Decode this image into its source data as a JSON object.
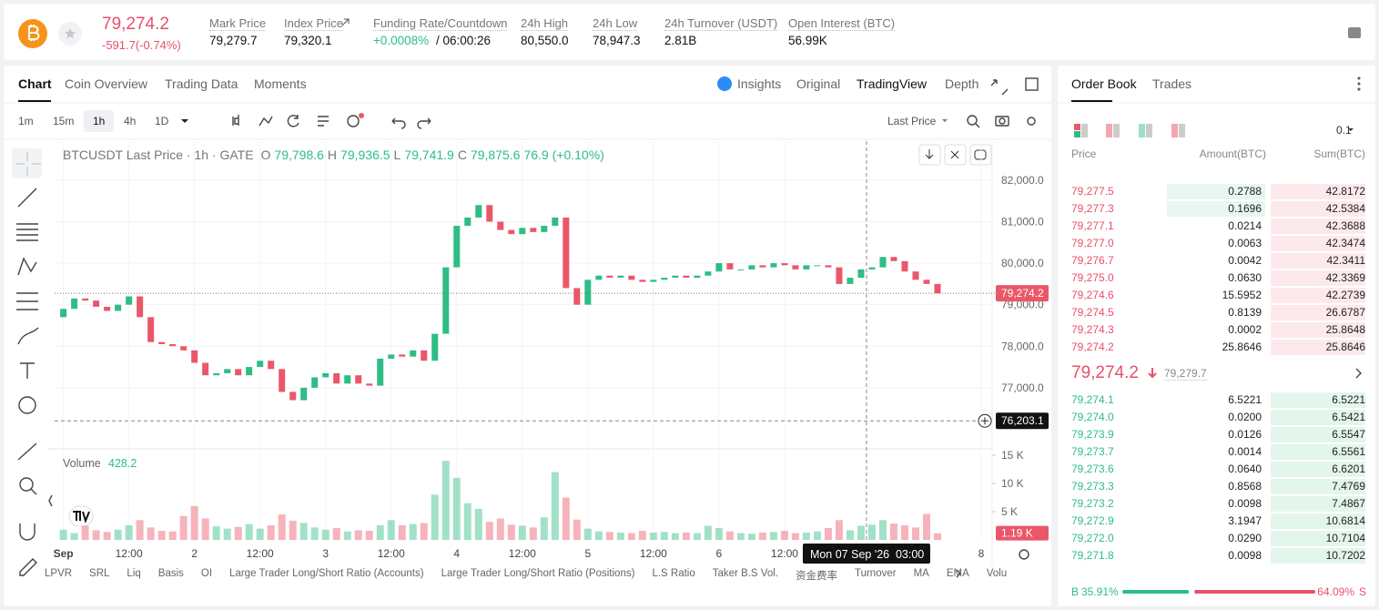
{
  "header": {
    "price": "79,274.2",
    "change": "-591.7(-0.74%)",
    "stats": [
      {
        "label": "Mark Price",
        "value": "79,279.7"
      },
      {
        "label": "Index Price",
        "value": "79,320.1"
      },
      {
        "label": "Funding Rate/Countdown",
        "value": "+0.0008%",
        "countdown": "/ 06:00:26"
      },
      {
        "label": "24h High",
        "value": "80,550.0"
      },
      {
        "label": "24h Low",
        "value": "78,947.3"
      },
      {
        "label": "24h Turnover (USDT)",
        "value": "2.81B"
      },
      {
        "label": "Open Interest (BTC)",
        "value": "56.99K"
      }
    ]
  },
  "tabs": [
    "Chart",
    "Coin Overview",
    "Trading Data",
    "Moments"
  ],
  "views": [
    "Insights",
    "Original",
    "TradingView",
    "Depth"
  ],
  "intervals": [
    "1m",
    "15m",
    "1h",
    "4h",
    "1D"
  ],
  "price_source": "Last Price",
  "legend": {
    "title": "BTCUSDT Last Price · 1h · GATE",
    "ohlc": [
      {
        "key": "O",
        "value": "79,798.6"
      },
      {
        "key": "H",
        "value": "79,936.5"
      },
      {
        "key": "L",
        "value": "79,741.9"
      },
      {
        "key": "C",
        "value": "79,875.6"
      }
    ],
    "change": "76.9 (+0.10%)"
  },
  "volume_legend": {
    "title": "Volume",
    "value": "428.2"
  },
  "chart_data": {
    "type": "candlestick",
    "up_color": "#2ebd85",
    "down_color": "#ea5769",
    "grid": true,
    "open": [
      78700,
      78900,
      79150,
      79100,
      78950,
      78850,
      79000,
      79200,
      78700,
      78100,
      78050,
      78000,
      77900,
      77600,
      77300,
      77350,
      77450,
      77300,
      77500,
      77650,
      77450,
      76900,
      76700,
      77000,
      77250,
      77350,
      77100,
      77300,
      77100,
      77050,
      77700,
      77800,
      77750,
      77900,
      77650,
      78300,
      79900,
      80900,
      81100,
      81400,
      81000,
      80800,
      80700,
      80850,
      80750,
      80900,
      81100,
      79400,
      79000,
      79600,
      79700,
      79650,
      79700,
      79600,
      79550,
      79600,
      79650,
      79700,
      79650,
      79700,
      79800,
      80000,
      79850,
      79850,
      79950,
      79900,
      80000,
      79950,
      79850,
      79950,
      79950,
      79900,
      79500,
      79650,
      79850,
      79900,
      80150,
      80050,
      79800,
      79600,
      79500
    ],
    "close": [
      78900,
      79150,
      79100,
      78950,
      78850,
      79000,
      79200,
      78700,
      78100,
      78050,
      78000,
      77900,
      77600,
      77300,
      77350,
      77450,
      77300,
      77500,
      77650,
      77450,
      76900,
      76700,
      77000,
      77250,
      77350,
      77100,
      77300,
      77100,
      77050,
      77700,
      77800,
      77750,
      77900,
      77650,
      78300,
      79900,
      80900,
      81100,
      81400,
      81000,
      80800,
      80700,
      80850,
      80750,
      80900,
      81100,
      79400,
      79000,
      79600,
      79700,
      79650,
      79700,
      79600,
      79550,
      79600,
      79650,
      79700,
      79650,
      79700,
      79800,
      80000,
      79850,
      79850,
      79950,
      79900,
      80000,
      79950,
      79850,
      79950,
      79950,
      79900,
      79500,
      79650,
      79850,
      79900,
      80150,
      80050,
      79800,
      79600,
      79500,
      79274.2
    ],
    "xlim": [
      -0.8,
      85
    ],
    "xticks": [
      {
        "value": 0,
        "label": "Sep"
      },
      {
        "value": 6,
        "label": "12:00"
      },
      {
        "value": 12,
        "label": "2"
      },
      {
        "value": 18,
        "label": "12:00"
      },
      {
        "value": 24,
        "label": "3"
      },
      {
        "value": 30,
        "label": "12:00"
      },
      {
        "value": 36,
        "label": "4"
      },
      {
        "value": 42,
        "label": "12:00"
      },
      {
        "value": 48,
        "label": "5"
      },
      {
        "value": 54,
        "label": "12:00"
      },
      {
        "value": 60,
        "label": "6"
      },
      {
        "value": 66,
        "label": "12:00"
      },
      {
        "value": 84,
        "label": "8"
      }
    ],
    "ylim": [
      75550,
      82940
    ],
    "yticks": [
      {
        "value": 77000,
        "label": "77,000.0"
      },
      {
        "value": 78000,
        "label": "78,000.0"
      },
      {
        "value": 79000,
        "label": "79,000.0"
      },
      {
        "value": 80000,
        "label": "80,000.0"
      },
      {
        "value": 81000,
        "label": "81,000.0"
      },
      {
        "value": 82000,
        "label": "82,000.0"
      }
    ],
    "last_price": {
      "value": 79274.2,
      "label": "79,274.2"
    },
    "crosshair": {
      "x": 73.5,
      "date": "Mon 07 Sep '26",
      "time": "03:00",
      "price": {
        "value": 76203.1,
        "label": "76,203.1"
      }
    },
    "volume": {
      "values": [
        1800,
        1200,
        2500,
        1700,
        1400,
        1800,
        2600,
        3500,
        2200,
        1600,
        1500,
        4200,
        6000,
        3800,
        2400,
        2000,
        2300,
        2800,
        2000,
        2600,
        4500,
        3400,
        3000,
        2200,
        1800,
        2100,
        1500,
        1700,
        1600,
        2600,
        3500,
        2600,
        2800,
        3000,
        8000,
        14000,
        11000,
        6500,
        5500,
        3200,
        3800,
        2700,
        2500,
        2200,
        4000,
        12000,
        7500,
        3600,
        2000,
        1500,
        1400,
        1300,
        1200,
        1600,
        1300,
        1400,
        1200,
        1300,
        1200,
        2500,
        2100,
        1500,
        1200,
        1100,
        1300,
        1400,
        1600,
        1200,
        1300,
        1500,
        2100,
        3500,
        1700,
        2500,
        2700,
        3500,
        2900,
        2600,
        2200,
        4600,
        1190
      ],
      "ylim": [
        0,
        15800
      ],
      "yticks": [
        {
          "value": 5000,
          "label": "5 K"
        },
        {
          "value": 10000,
          "label": "10 K"
        },
        {
          "value": 15000,
          "label": "15 K"
        }
      ],
      "last": {
        "value": 1190,
        "label": "1.19 K"
      }
    }
  },
  "indicators": [
    "LPVR",
    "SRL",
    "Liq",
    "Basis",
    "OI",
    "Large Trader Long/Short Ratio (Accounts)",
    "Large Trader Long/Short Ratio (Positions)",
    "L.S Ratio",
    "Taker B.S Vol.",
    "资金费率",
    "Turnover",
    "MA",
    "EMA",
    "Volu"
  ],
  "order_book": {
    "tabs": [
      "Order Book",
      "Trades"
    ],
    "precision": "0.1",
    "columns": [
      "Price",
      "Amount(BTC)",
      "Sum(BTC)"
    ],
    "asks": [
      [
        "79,277.5",
        "0.2788",
        "42.8172"
      ],
      [
        "79,277.3",
        "0.1696",
        "42.5384"
      ],
      [
        "79,277.1",
        "0.0214",
        "42.3688"
      ],
      [
        "79,277.0",
        "0.0063",
        "42.3474"
      ],
      [
        "79,276.7",
        "0.0042",
        "42.3411"
      ],
      [
        "79,275.0",
        "0.0630",
        "42.3369"
      ],
      [
        "79,274.6",
        "15.5952",
        "42.2739"
      ],
      [
        "79,274.5",
        "0.8139",
        "26.6787"
      ],
      [
        "79,274.3",
        "0.0002",
        "25.8648"
      ],
      [
        "79,274.2",
        "25.8646",
        "25.8646"
      ]
    ],
    "mid": {
      "price": "79,274.2",
      "mark": "79,279.7"
    },
    "bids": [
      [
        "79,274.1",
        "6.5221",
        "6.5221"
      ],
      [
        "79,274.0",
        "0.0200",
        "6.5421"
      ],
      [
        "79,273.9",
        "0.0126",
        "6.5547"
      ],
      [
        "79,273.7",
        "0.0014",
        "6.5561"
      ],
      [
        "79,273.6",
        "0.0640",
        "6.6201"
      ],
      [
        "79,273.3",
        "0.8568",
        "7.4769"
      ],
      [
        "79,273.2",
        "0.0098",
        "7.4867"
      ],
      [
        "79,272.9",
        "3.1947",
        "10.6814"
      ],
      [
        "79,272.0",
        "0.0290",
        "10.7104"
      ],
      [
        "79,271.8",
        "0.0098",
        "10.7202"
      ]
    ],
    "buy": {
      "label": "B",
      "value": 35.91,
      "text": "35.91%"
    },
    "sell": {
      "label": "S",
      "value": 64.09,
      "text": "64.09%"
    }
  }
}
